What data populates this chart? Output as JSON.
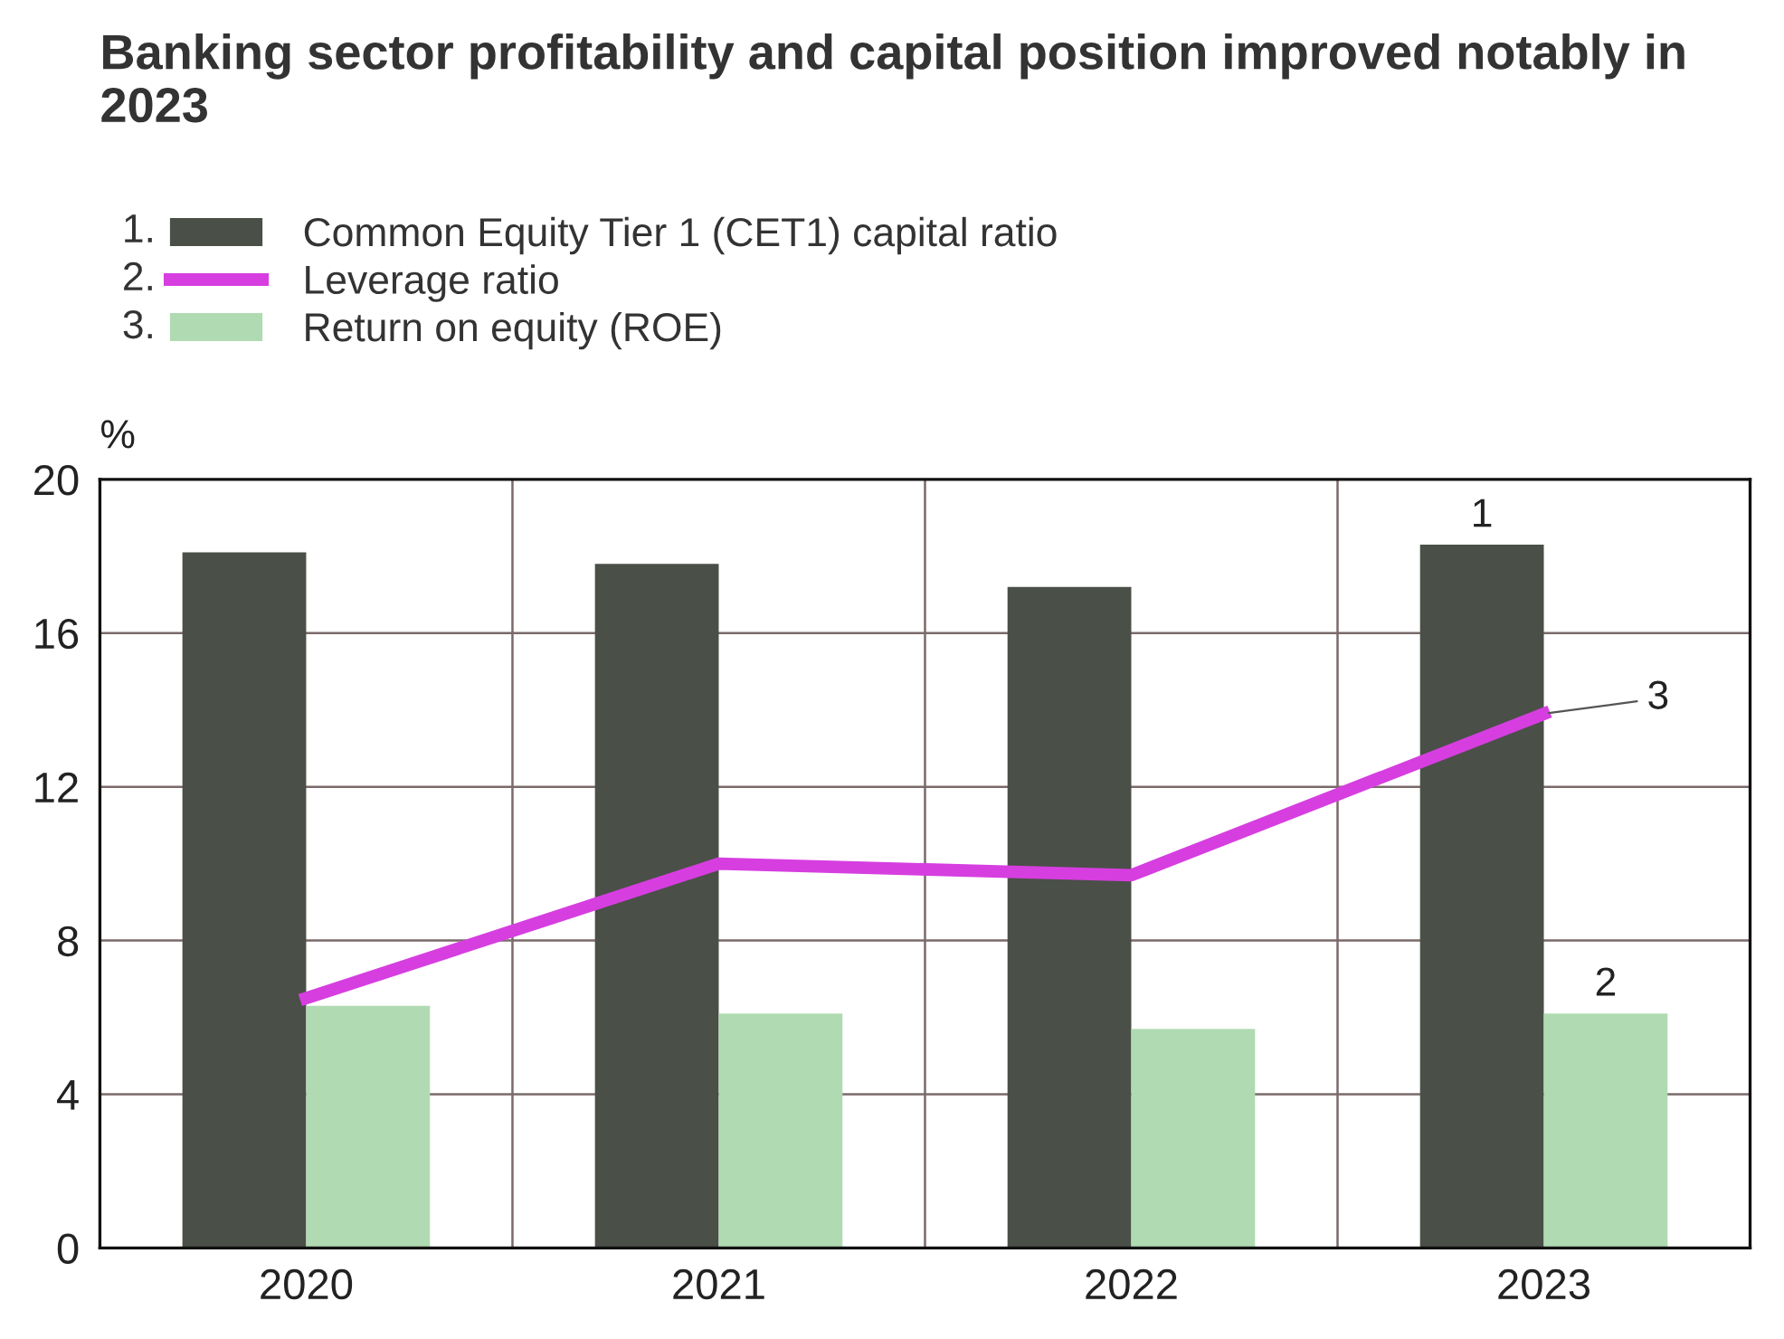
{
  "chart_data": {
    "type": "bar",
    "title": "Banking sector profitability and capital position improved notably in 2023",
    "ylabel": "%",
    "categories": [
      "2020",
      "2021",
      "2022",
      "2023"
    ],
    "series": [
      {
        "name": "Common Equity Tier 1 (CET1) capital ratio",
        "color": "#4a4f47",
        "values": [
          18.1,
          17.8,
          17.2,
          18.3
        ]
      },
      {
        "name": "Leverage ratio",
        "type": "line",
        "color": "#d63ee0",
        "values": [
          6.5,
          10.0,
          9.7,
          13.9
        ]
      },
      {
        "name": "Return on equity (ROE)",
        "color": "#b0dbb2",
        "values": [
          6.3,
          6.1,
          5.7,
          6.1
        ]
      }
    ],
    "annotations": [
      "1.",
      "2.",
      "3.",
      {
        "text": "1",
        "x": "2023",
        "y": 18.3
      },
      {
        "text": "2",
        "x": "2023",
        "y": 6.1
      },
      {
        "text": "3",
        "x": "2023",
        "y": 13.9
      }
    ],
    "ylim": [
      0,
      20
    ],
    "yticks": [
      0,
      4,
      8,
      12,
      16,
      20
    ],
    "grid": true,
    "legend": "top left",
    "line_style": "solid",
    "marker": "none"
  }
}
